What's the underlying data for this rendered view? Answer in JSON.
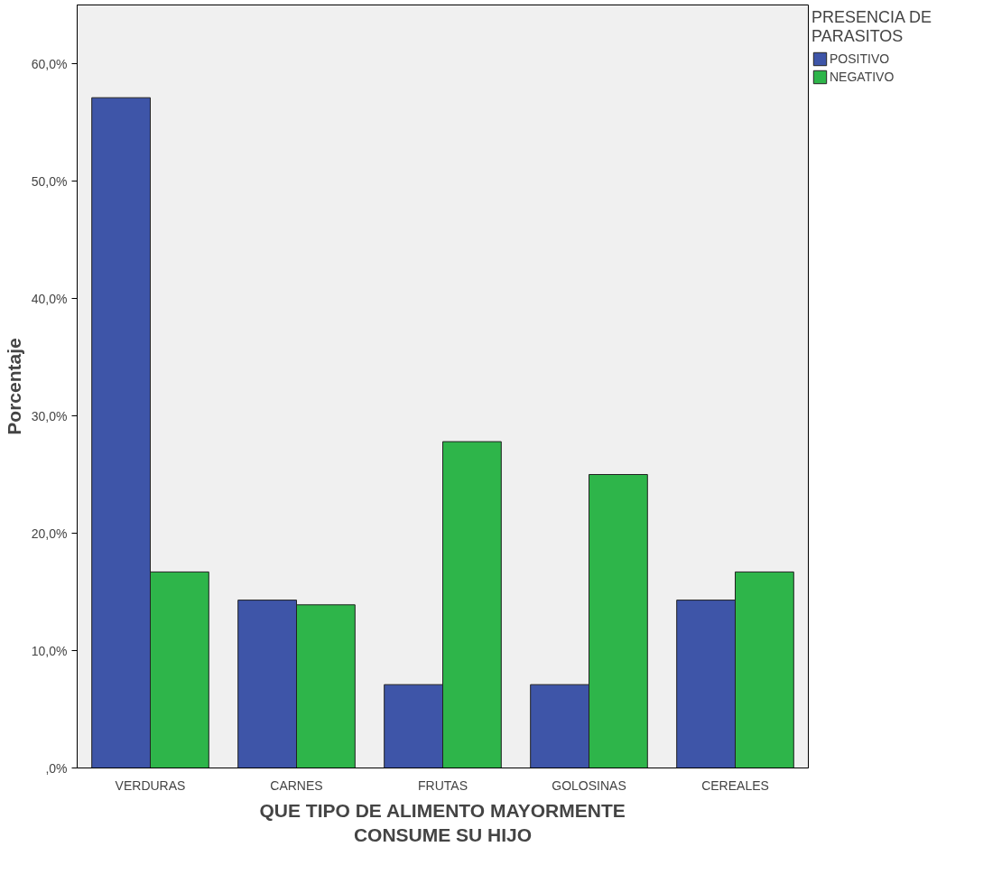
{
  "chart_data": {
    "type": "bar",
    "xlabel": "QUE TIPO DE ALIMENTO MAYORMENTE CONSUME SU HIJO",
    "ylabel": "Porcentaje",
    "legend_title": "PRESENCIA DE PARASITOS",
    "categories": [
      "VERDURAS",
      "CARNES",
      "FRUTAS",
      "GOLOSINAS",
      "CEREALES"
    ],
    "series": [
      {
        "name": "POSITIVO",
        "color": "#3e55a8",
        "values": [
          57.1,
          14.3,
          7.1,
          7.1,
          14.3
        ]
      },
      {
        "name": "NEGATIVO",
        "color": "#2eb54a",
        "values": [
          16.7,
          13.9,
          27.8,
          25.0,
          16.7
        ]
      }
    ],
    "ylim": [
      0,
      65
    ],
    "yticks": [
      {
        "value": 0,
        "label": ",0%"
      },
      {
        "value": 10,
        "label": "10,0%"
      },
      {
        "value": 20,
        "label": "20,0%"
      },
      {
        "value": 30,
        "label": "30,0%"
      },
      {
        "value": 40,
        "label": "40,0%"
      },
      {
        "value": 50,
        "label": "50,0%"
      },
      {
        "value": 60,
        "label": "60,0%"
      }
    ],
    "grid": false,
    "legend": "top right"
  }
}
